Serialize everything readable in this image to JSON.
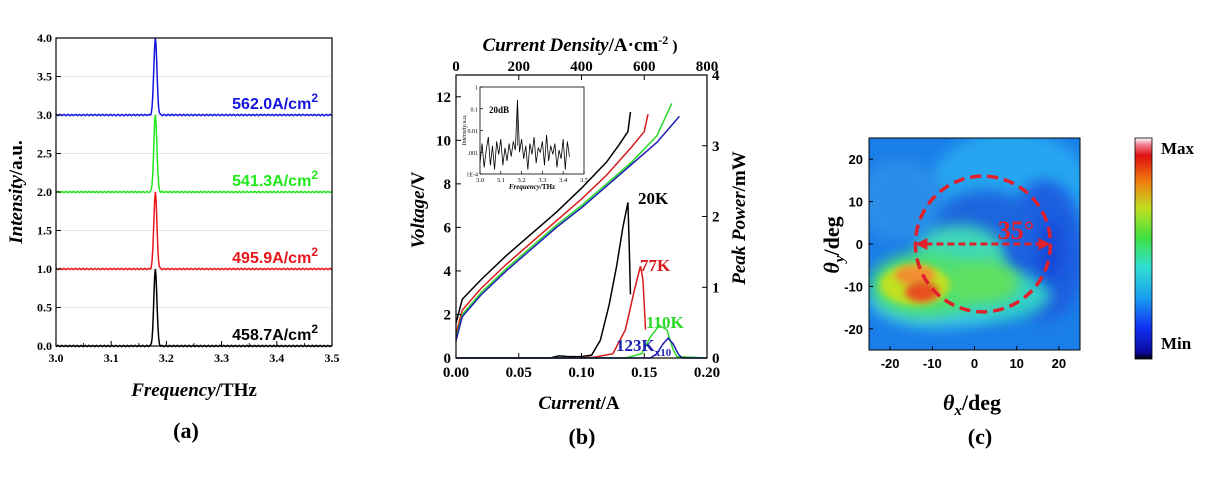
{
  "chart_data": [
    {
      "panel": "(a)",
      "type": "line",
      "xlabel_italic": "Frequency",
      "xlabel_unit": "/THz",
      "ylabel_italic": "Intensity",
      "ylabel_unit": "/a.u.",
      "xlim": [
        3.0,
        3.5
      ],
      "ylim": [
        0.0,
        4.0
      ],
      "xticks": [
        "3.0",
        "3.1",
        "3.2",
        "3.3",
        "3.4",
        "3.5"
      ],
      "yticks": [
        "0.0",
        "0.5",
        "1.0",
        "1.5",
        "2.0",
        "2.5",
        "3.0",
        "3.5",
        "4.0"
      ],
      "peak_frequency": 3.18,
      "series": [
        {
          "label": "458.7A/cm",
          "label_sup": "2",
          "color": "#000000",
          "offset": 0.0,
          "peak_height": 1.0
        },
        {
          "label": "495.9A/cm",
          "label_sup": "2",
          "color": "#e8151b",
          "offset": 1.0,
          "peak_height": 1.0
        },
        {
          "label": "541.3A/cm",
          "label_sup": "2",
          "color": "#1fe81b",
          "offset": 2.0,
          "peak_height": 1.0
        },
        {
          "label": "562.0A/cm",
          "label_sup": "2",
          "color": "#1414e0",
          "offset": 3.0,
          "peak_height": 1.0
        }
      ]
    },
    {
      "panel": "(b)",
      "type": "line",
      "xlabel_italic": "Current",
      "xlabel_unit": "/A",
      "ylabel_italic": "Voltage",
      "ylabel_unit": "/V",
      "y2label_italic": "Peak Power",
      "y2label_unit": "/mW",
      "top_label_italic": "Current Density",
      "top_label_unit": "/A·cm",
      "top_label_sup": "-2",
      "top_label_tail": " )",
      "xlim": [
        0.0,
        0.2
      ],
      "ylim": [
        0,
        13
      ],
      "y2lim": [
        0,
        4
      ],
      "toplim": [
        0,
        800
      ],
      "xticks": [
        "0.00",
        "0.05",
        "0.10",
        "0.15",
        "0.20"
      ],
      "yticks": [
        "0",
        "2",
        "4",
        "6",
        "8",
        "10",
        "12"
      ],
      "y2ticks": [
        "0",
        "1",
        "2",
        "3",
        "4"
      ],
      "topticks": [
        "0",
        "200",
        "400",
        "600",
        "800"
      ],
      "iv_series": [
        {
          "temp": "20K",
          "color": "#000000",
          "points": [
            [
              0,
              1.6
            ],
            [
              0.005,
              2.7
            ],
            [
              0.02,
              3.6
            ],
            [
              0.04,
              4.7
            ],
            [
              0.06,
              5.7
            ],
            [
              0.08,
              6.7
            ],
            [
              0.1,
              7.8
            ],
            [
              0.12,
              9.0
            ],
            [
              0.13,
              9.8
            ],
            [
              0.137,
              10.4
            ],
            [
              0.139,
              11.3
            ]
          ]
        },
        {
          "temp": "77K",
          "color": "#d81a1a",
          "points": [
            [
              0,
              1.1
            ],
            [
              0.005,
              2.2
            ],
            [
              0.02,
              3.2
            ],
            [
              0.04,
              4.3
            ],
            [
              0.06,
              5.3
            ],
            [
              0.08,
              6.3
            ],
            [
              0.1,
              7.3
            ],
            [
              0.12,
              8.4
            ],
            [
              0.14,
              9.7
            ],
            [
              0.15,
              10.4
            ],
            [
              0.153,
              11.2
            ]
          ]
        },
        {
          "temp": "110K",
          "color": "#2ad82a",
          "points": [
            [
              0,
              0.9
            ],
            [
              0.005,
              2.0
            ],
            [
              0.02,
              3.0
            ],
            [
              0.04,
              4.1
            ],
            [
              0.06,
              5.1
            ],
            [
              0.08,
              6.1
            ],
            [
              0.1,
              7.0
            ],
            [
              0.12,
              8.0
            ],
            [
              0.14,
              9.0
            ],
            [
              0.16,
              10.2
            ],
            [
              0.172,
              11.7
            ]
          ]
        },
        {
          "temp": "123K",
          "color": "#1e1eb4",
          "points": [
            [
              0,
              0.8
            ],
            [
              0.005,
              1.9
            ],
            [
              0.02,
              2.9
            ],
            [
              0.04,
              4.0
            ],
            [
              0.06,
              5.0
            ],
            [
              0.08,
              6.0
            ],
            [
              0.1,
              6.9
            ],
            [
              0.12,
              7.9
            ],
            [
              0.14,
              8.9
            ],
            [
              0.16,
              9.9
            ],
            [
              0.178,
              11.1
            ]
          ]
        }
      ],
      "lp_series": [
        {
          "label": "20K",
          "color": "#000000",
          "points": [
            [
              0,
              0
            ],
            [
              0.075,
              0
            ],
            [
              0.082,
              0.03
            ],
            [
              0.09,
              0.02
            ],
            [
              0.1,
              0.02
            ],
            [
              0.108,
              0.04
            ],
            [
              0.115,
              0.25
            ],
            [
              0.122,
              0.75
            ],
            [
              0.128,
              1.3
            ],
            [
              0.133,
              1.85
            ],
            [
              0.137,
              2.2
            ],
            [
              0.138,
              1.6
            ],
            [
              0.139,
              0.9
            ]
          ]
        },
        {
          "label": "77K",
          "color": "#d81a1a",
          "points": [
            [
              0,
              0
            ],
            [
              0.09,
              0
            ],
            [
              0.11,
              0.01
            ],
            [
              0.125,
              0.06
            ],
            [
              0.135,
              0.4
            ],
            [
              0.142,
              0.95
            ],
            [
              0.147,
              1.3
            ],
            [
              0.149,
              1.1
            ],
            [
              0.151,
              0.4
            ]
          ]
        },
        {
          "label": "110K",
          "color": "#2ad82a",
          "points": [
            [
              0,
              0
            ],
            [
              0.135,
              0
            ],
            [
              0.148,
              0.06
            ],
            [
              0.155,
              0.3
            ],
            [
              0.162,
              0.46
            ],
            [
              0.168,
              0.4
            ],
            [
              0.173,
              0.12
            ],
            [
              0.176,
              0.02
            ],
            [
              0.2,
              0
            ]
          ]
        },
        {
          "label": "123K",
          "label_sub": "x10",
          "color": "#1e1eb4",
          "points": [
            [
              0,
              0
            ],
            [
              0.155,
              0
            ],
            [
              0.16,
              0.06
            ],
            [
              0.165,
              0.2
            ],
            [
              0.169,
              0.28
            ],
            [
              0.173,
              0.2
            ],
            [
              0.177,
              0.06
            ],
            [
              0.18,
              0
            ],
            [
              0.2,
              0
            ]
          ]
        }
      ],
      "inset": {
        "xlabel_italic": "Frequency",
        "xlabel_unit": "/THz",
        "ylabel_italic": "Intensity",
        "ylabel_unit": "/a.u.",
        "annotation": "20dB",
        "xticks": [
          "3.0",
          "3.1",
          "3.2",
          "3.3",
          "3.4",
          "3.5"
        ],
        "yticks": [
          "1",
          "0.1",
          "0.01",
          ".001",
          "1E-4"
        ],
        "xlim": [
          3.0,
          3.5
        ],
        "ylim_log10": [
          -4,
          0
        ],
        "points": [
          [
            3.0,
            -3.5
          ],
          [
            3.01,
            -2.6
          ],
          [
            3.02,
            -3.7
          ],
          [
            3.03,
            -2.9
          ],
          [
            3.04,
            -2.3
          ],
          [
            3.05,
            -3.6
          ],
          [
            3.06,
            -2.7
          ],
          [
            3.07,
            -3.8
          ],
          [
            3.08,
            -2.5
          ],
          [
            3.09,
            -3.1
          ],
          [
            3.1,
            -2.4
          ],
          [
            3.11,
            -3.6
          ],
          [
            3.12,
            -2.8
          ],
          [
            3.13,
            -3.4
          ],
          [
            3.14,
            -2.6
          ],
          [
            3.15,
            -3.2
          ],
          [
            3.16,
            -2.5
          ],
          [
            3.17,
            -2.9
          ],
          [
            3.18,
            -0.6
          ],
          [
            3.19,
            -3.0
          ],
          [
            3.2,
            -2.4
          ],
          [
            3.21,
            -3.3
          ],
          [
            3.22,
            -2.7
          ],
          [
            3.23,
            -3.8
          ],
          [
            3.24,
            -2.6
          ],
          [
            3.25,
            -3.1
          ],
          [
            3.26,
            -2.3
          ],
          [
            3.27,
            -3.5
          ],
          [
            3.28,
            -2.8
          ],
          [
            3.29,
            -3.0
          ],
          [
            3.3,
            -2.5
          ],
          [
            3.31,
            -3.6
          ],
          [
            3.32,
            -2.2
          ],
          [
            3.33,
            -3.4
          ],
          [
            3.34,
            -2.7
          ],
          [
            3.35,
            -3.1
          ],
          [
            3.36,
            -2.6
          ],
          [
            3.37,
            -3.7
          ],
          [
            3.38,
            -2.9
          ],
          [
            3.39,
            -3.3
          ],
          [
            3.4,
            -2.4
          ],
          [
            3.41,
            -3.8
          ],
          [
            3.42,
            -2.5
          ],
          [
            3.43,
            -3.2
          ]
        ]
      }
    },
    {
      "panel": "(c)",
      "type": "heatmap",
      "xlabel_symbol": "θ",
      "xlabel_sub": "x",
      "xlabel_unit": "/deg",
      "ylabel_symbol": "θ",
      "ylabel_sub": "y",
      "ylabel_unit": "/deg",
      "xlim": [
        -25,
        25
      ],
      "ylim": [
        -25,
        25
      ],
      "xticks": [
        "-20",
        "-10",
        "0",
        "10",
        "20"
      ],
      "yticks": [
        "20",
        "10",
        "0",
        "-10",
        "-20"
      ],
      "annotation": "35°",
      "annotation_color": "#e0202a",
      "circle_center": [
        2,
        0
      ],
      "circle_radius": 16,
      "colorbar": {
        "max_label": "Max",
        "min_label": "Min"
      }
    }
  ]
}
